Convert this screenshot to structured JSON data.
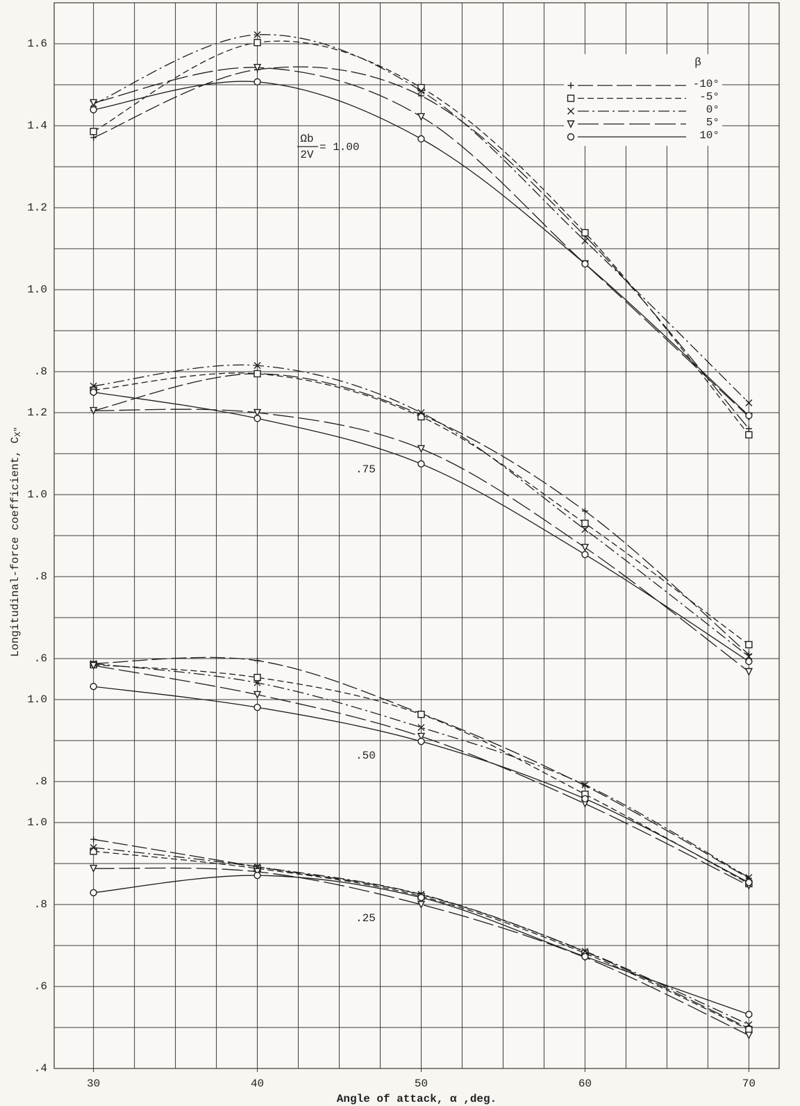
{
  "chart_data": [
    {
      "type": "line",
      "annotation": {
        "numerator": "Ωb",
        "denominator": "2V",
        "text": "= 1.00"
      },
      "xlabel": "Angle of attack, α ,deg.",
      "ylabel": {
        "text": "Longitudinal-force coefficient, C",
        "subscript": "X\""
      },
      "x": [
        30,
        40,
        50,
        60,
        70
      ],
      "xlim": [
        27.6,
        71.85
      ],
      "xticks": [
        30,
        40,
        50,
        60,
        70
      ],
      "ylim": [
        -0.9,
        1.7
      ],
      "yticks": [
        {
          "value": 0.8,
          "label": ".8"
        },
        {
          "value": 1.0,
          "label": "1.0"
        },
        1.2,
        1.4,
        1.6
      ],
      "grid": {
        "x_step": 2.5,
        "y_step": 0.1
      },
      "legend": {
        "title": "β",
        "position": "upper right"
      },
      "series": [
        {
          "name": "-10°",
          "color": "#1e1e1e",
          "marker": "plus",
          "dash": "longdash",
          "values": [
            1.371,
            1.537,
            1.473,
            1.131,
            0.661
          ]
        },
        {
          "name": "-5°",
          "color": "#1e1e1e",
          "marker": "square",
          "dash": "dashed",
          "values": [
            1.386,
            1.603,
            1.493,
            1.139,
            0.646
          ]
        },
        {
          "name": "0°",
          "color": "#1e1e1e",
          "marker": "x",
          "dash": "dashdot",
          "values": [
            1.453,
            1.622,
            1.485,
            1.119,
            0.724
          ]
        },
        {
          "name": "5°",
          "color": "#1e1e1e",
          "marker": "triangle-down",
          "dash": "longdash2",
          "values": [
            1.456,
            1.542,
            1.422,
            1.063,
            0.69
          ]
        },
        {
          "name": "10°",
          "color": "#1e1e1e",
          "marker": "circle",
          "dash": "solid",
          "values": [
            1.439,
            1.507,
            1.368,
            1.063,
            0.693
          ]
        }
      ]
    },
    {
      "type": "line",
      "annotation": {
        "text": ".75"
      },
      "x": [
        30,
        40,
        50,
        60,
        70
      ],
      "ylim": [
        -0.4,
        2.2
      ],
      "yticks": [
        {
          "value": 0.6,
          "label": ".6"
        },
        {
          "value": 0.8,
          "label": ".8"
        },
        {
          "value": 1.0,
          "label": "1.0"
        },
        1.2
      ],
      "series": [
        {
          "values": [
            1.205,
            1.295,
            1.195,
            0.96,
            0.61
          ]
        },
        {
          "values": [
            1.255,
            1.295,
            1.19,
            0.93,
            0.634
          ]
        },
        {
          "values": [
            1.265,
            1.315,
            1.2,
            0.915,
            0.605
          ]
        },
        {
          "values": [
            1.205,
            1.2,
            1.112,
            0.871,
            0.568
          ]
        },
        {
          "values": [
            1.25,
            1.186,
            1.075,
            0.854,
            0.593
          ]
        }
      ]
    },
    {
      "type": "line",
      "annotation": {
        "text": ".50"
      },
      "x": [
        30,
        40,
        50,
        60,
        70
      ],
      "ylim": [
        0.1,
        2.7
      ],
      "yticks": [
        {
          "value": 0.8,
          "label": ".8"
        },
        {
          "value": 1.0,
          "label": "1.0"
        }
      ],
      "series": [
        {
          "values": [
            1.088,
            1.095,
            0.966,
            0.79,
            0.564
          ]
        },
        {
          "values": [
            1.085,
            1.054,
            0.964,
            0.769,
            0.551
          ]
        },
        {
          "values": [
            1.088,
            1.041,
            0.932,
            0.792,
            0.566
          ]
        },
        {
          "values": [
            1.083,
            1.012,
            0.91,
            0.746,
            0.546
          ]
        },
        {
          "values": [
            1.032,
            0.981,
            0.898,
            0.758,
            0.554
          ]
        }
      ]
    },
    {
      "type": "line",
      "annotation": {
        "text": ".25"
      },
      "x": [
        30,
        40,
        50,
        60,
        70
      ],
      "ylim": [
        0.4,
        3.0
      ],
      "yticks": [
        {
          "value": 0.4,
          "label": ".4"
        },
        {
          "value": 0.6,
          "label": ".6"
        },
        {
          "value": 0.8,
          "label": ".8"
        },
        {
          "value": 1.0,
          "label": "1.0"
        }
      ],
      "series": [
        {
          "values": [
            0.959,
            0.892,
            0.824,
            0.685,
            0.498
          ]
        },
        {
          "values": [
            0.93,
            0.888,
            0.82,
            0.681,
            0.495
          ]
        },
        {
          "values": [
            0.939,
            0.892,
            0.825,
            0.686,
            0.507
          ]
        },
        {
          "values": [
            0.888,
            0.88,
            0.8,
            0.671,
            0.481
          ]
        },
        {
          "values": [
            0.829,
            0.871,
            0.817,
            0.673,
            0.532
          ]
        }
      ]
    }
  ]
}
